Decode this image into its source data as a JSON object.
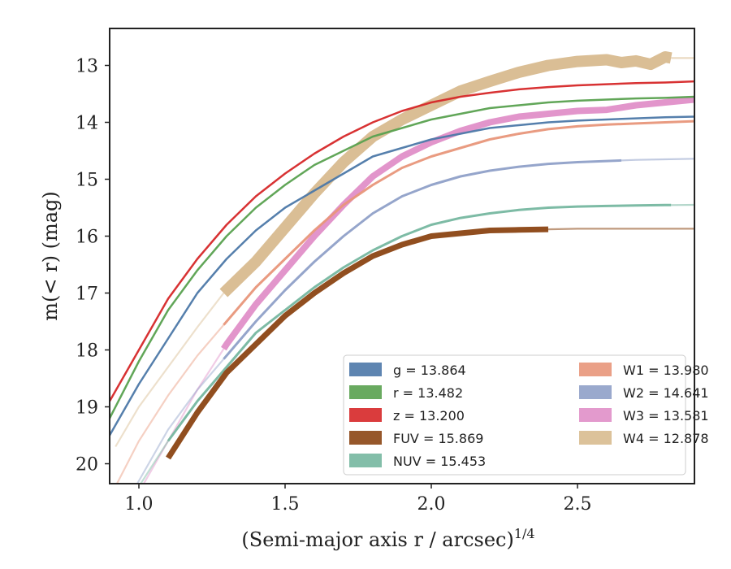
{
  "chart_data": {
    "type": "line",
    "xlabel": "(Semi-major axis r / arcsec)",
    "xlabel_exponent": "1/4",
    "ylabel": "m(< r) (mag)",
    "xlim": [
      0.9,
      2.9
    ],
    "ylim": [
      20.35,
      12.35
    ],
    "y_inverted": true,
    "grid": false,
    "legend_position": "lower-right",
    "x_ticks": [
      1.0,
      1.5,
      2.0,
      2.5
    ],
    "x_tick_labels": [
      "1.0",
      "1.5",
      "2.0",
      "2.5"
    ],
    "y_ticks": [
      13,
      14,
      15,
      16,
      17,
      18,
      19,
      20
    ],
    "y_tick_labels": [
      "13",
      "14",
      "15",
      "16",
      "17",
      "18",
      "19",
      "20"
    ],
    "series": [
      {
        "name": "g",
        "legend": "g = 13.864",
        "color": "#4c78a8",
        "width": 2.5,
        "faint_start": 0.9,
        "start": 0.9,
        "end": 2.9,
        "x": [
          0.9,
          1.0,
          1.1,
          1.2,
          1.3,
          1.4,
          1.5,
          1.6,
          1.7,
          1.8,
          1.9,
          2.0,
          2.1,
          2.2,
          2.3,
          2.4,
          2.5,
          2.6,
          2.7,
          2.8,
          2.9
        ],
        "y": [
          19.5,
          18.6,
          17.8,
          17.0,
          16.4,
          15.9,
          15.5,
          15.2,
          14.9,
          14.6,
          14.45,
          14.3,
          14.2,
          14.1,
          14.05,
          14.0,
          13.97,
          13.95,
          13.93,
          13.91,
          13.9
        ]
      },
      {
        "name": "r",
        "legend": "r = 13.482",
        "color": "#59a14f",
        "width": 2.5,
        "faint_start": 0.9,
        "start": 0.9,
        "end": 2.9,
        "x": [
          0.9,
          1.0,
          1.1,
          1.2,
          1.3,
          1.4,
          1.5,
          1.6,
          1.7,
          1.8,
          1.9,
          2.0,
          2.1,
          2.2,
          2.3,
          2.4,
          2.5,
          2.6,
          2.7,
          2.8,
          2.9
        ],
        "y": [
          19.2,
          18.2,
          17.3,
          16.6,
          16.0,
          15.5,
          15.1,
          14.75,
          14.5,
          14.25,
          14.1,
          13.95,
          13.85,
          13.75,
          13.7,
          13.65,
          13.62,
          13.6,
          13.58,
          13.57,
          13.55
        ]
      },
      {
        "name": "z",
        "legend": "z = 13.200",
        "color": "#d62728",
        "width": 2.5,
        "faint_start": 0.9,
        "start": 0.9,
        "end": 2.9,
        "x": [
          0.9,
          1.0,
          1.1,
          1.2,
          1.3,
          1.4,
          1.5,
          1.6,
          1.7,
          1.8,
          1.9,
          2.0,
          2.1,
          2.2,
          2.3,
          2.4,
          2.5,
          2.6,
          2.7,
          2.8,
          2.9
        ],
        "y": [
          18.9,
          18.0,
          17.1,
          16.4,
          15.8,
          15.3,
          14.9,
          14.55,
          14.25,
          14.0,
          13.8,
          13.65,
          13.55,
          13.48,
          13.42,
          13.38,
          13.35,
          13.33,
          13.31,
          13.3,
          13.28
        ]
      },
      {
        "name": "FUV",
        "legend": "FUV = 15.869",
        "color": "#8b4513",
        "width": 7,
        "faint_start": 2.4,
        "start": 1.1,
        "end": 2.4,
        "x": [
          1.1,
          1.2,
          1.3,
          1.4,
          1.5,
          1.6,
          1.7,
          1.8,
          1.9,
          2.0,
          2.1,
          2.2,
          2.3,
          2.4,
          2.5,
          2.6,
          2.7,
          2.8,
          2.9
        ],
        "y": [
          19.9,
          19.1,
          18.4,
          17.9,
          17.4,
          17.0,
          16.65,
          16.35,
          16.15,
          16.0,
          15.95,
          15.9,
          15.89,
          15.88,
          15.87,
          15.87,
          15.87,
          15.87,
          15.87
        ]
      },
      {
        "name": "NUV",
        "legend": "NUV = 15.453",
        "color": "#76b7a0",
        "width": 3,
        "faint_start": 0.9,
        "start": 1.1,
        "end": 2.82,
        "x": [
          0.9,
          1.0,
          1.1,
          1.2,
          1.3,
          1.4,
          1.5,
          1.6,
          1.7,
          1.8,
          1.9,
          2.0,
          2.1,
          2.2,
          2.3,
          2.4,
          2.5,
          2.6,
          2.7,
          2.8,
          2.9
        ],
        "y": [
          21.2,
          20.4,
          19.6,
          18.9,
          18.3,
          17.7,
          17.3,
          16.9,
          16.55,
          16.25,
          16.0,
          15.8,
          15.68,
          15.6,
          15.54,
          15.5,
          15.48,
          15.47,
          15.46,
          15.455,
          15.45
        ]
      },
      {
        "name": "W1",
        "legend": "W1 = 13.980",
        "color": "#e8967a",
        "width": 3,
        "faint_start": 0.9,
        "start": 1.29,
        "end": 2.9,
        "x": [
          0.9,
          1.0,
          1.1,
          1.2,
          1.3,
          1.4,
          1.5,
          1.6,
          1.7,
          1.8,
          1.9,
          2.0,
          2.1,
          2.2,
          2.3,
          2.4,
          2.5,
          2.6,
          2.7,
          2.8,
          2.9
        ],
        "y": [
          20.6,
          19.6,
          18.8,
          18.1,
          17.5,
          16.9,
          16.4,
          15.9,
          15.45,
          15.1,
          14.8,
          14.6,
          14.45,
          14.3,
          14.2,
          14.12,
          14.07,
          14.04,
          14.02,
          14.0,
          13.98
        ]
      },
      {
        "name": "W2",
        "legend": "W2 = 14.641",
        "color": "#8fa0c8",
        "width": 3,
        "faint_start": 0.9,
        "start": 1.29,
        "end": 2.65,
        "x": [
          0.9,
          1.0,
          1.1,
          1.2,
          1.3,
          1.4,
          1.5,
          1.6,
          1.7,
          1.8,
          1.9,
          2.0,
          2.1,
          2.2,
          2.3,
          2.4,
          2.5,
          2.6,
          2.7,
          2.8,
          2.9
        ],
        "y": [
          21.2,
          20.3,
          19.4,
          18.7,
          18.1,
          17.5,
          16.95,
          16.45,
          16.0,
          15.6,
          15.3,
          15.1,
          14.95,
          14.85,
          14.78,
          14.73,
          14.7,
          14.68,
          14.66,
          14.65,
          14.64
        ]
      },
      {
        "name": "W3",
        "legend": "W3 = 13.581",
        "color": "#e08fc8",
        "width": 8,
        "faint_start": 0.9,
        "start": 1.29,
        "end": 2.9,
        "x": [
          0.9,
          1.0,
          1.1,
          1.2,
          1.3,
          1.4,
          1.5,
          1.6,
          1.7,
          1.8,
          1.9,
          2.0,
          2.1,
          2.2,
          2.3,
          2.4,
          2.5,
          2.6,
          2.7,
          2.8,
          2.9
        ],
        "y": [
          21.5,
          20.5,
          19.6,
          18.7,
          17.9,
          17.2,
          16.6,
          16.0,
          15.45,
          14.95,
          14.6,
          14.35,
          14.15,
          14.0,
          13.9,
          13.85,
          13.8,
          13.78,
          13.7,
          13.65,
          13.6
        ]
      },
      {
        "name": "W4",
        "legend": "W4 = 12.878",
        "color": "#d8bb8f",
        "width": 14,
        "faint_start": 0.92,
        "start": 1.29,
        "end": 2.82,
        "x": [
          0.92,
          1.0,
          1.1,
          1.2,
          1.29,
          1.4,
          1.5,
          1.6,
          1.7,
          1.8,
          1.9,
          2.0,
          2.1,
          2.2,
          2.3,
          2.4,
          2.5,
          2.6,
          2.65,
          2.7,
          2.75,
          2.8,
          2.82,
          2.9
        ],
        "y": [
          19.7,
          19.0,
          18.3,
          17.6,
          17.0,
          16.45,
          15.85,
          15.25,
          14.7,
          14.25,
          13.95,
          13.7,
          13.45,
          13.28,
          13.12,
          13.0,
          12.93,
          12.9,
          12.95,
          12.92,
          12.98,
          12.85,
          12.87,
          12.87
        ]
      }
    ]
  }
}
